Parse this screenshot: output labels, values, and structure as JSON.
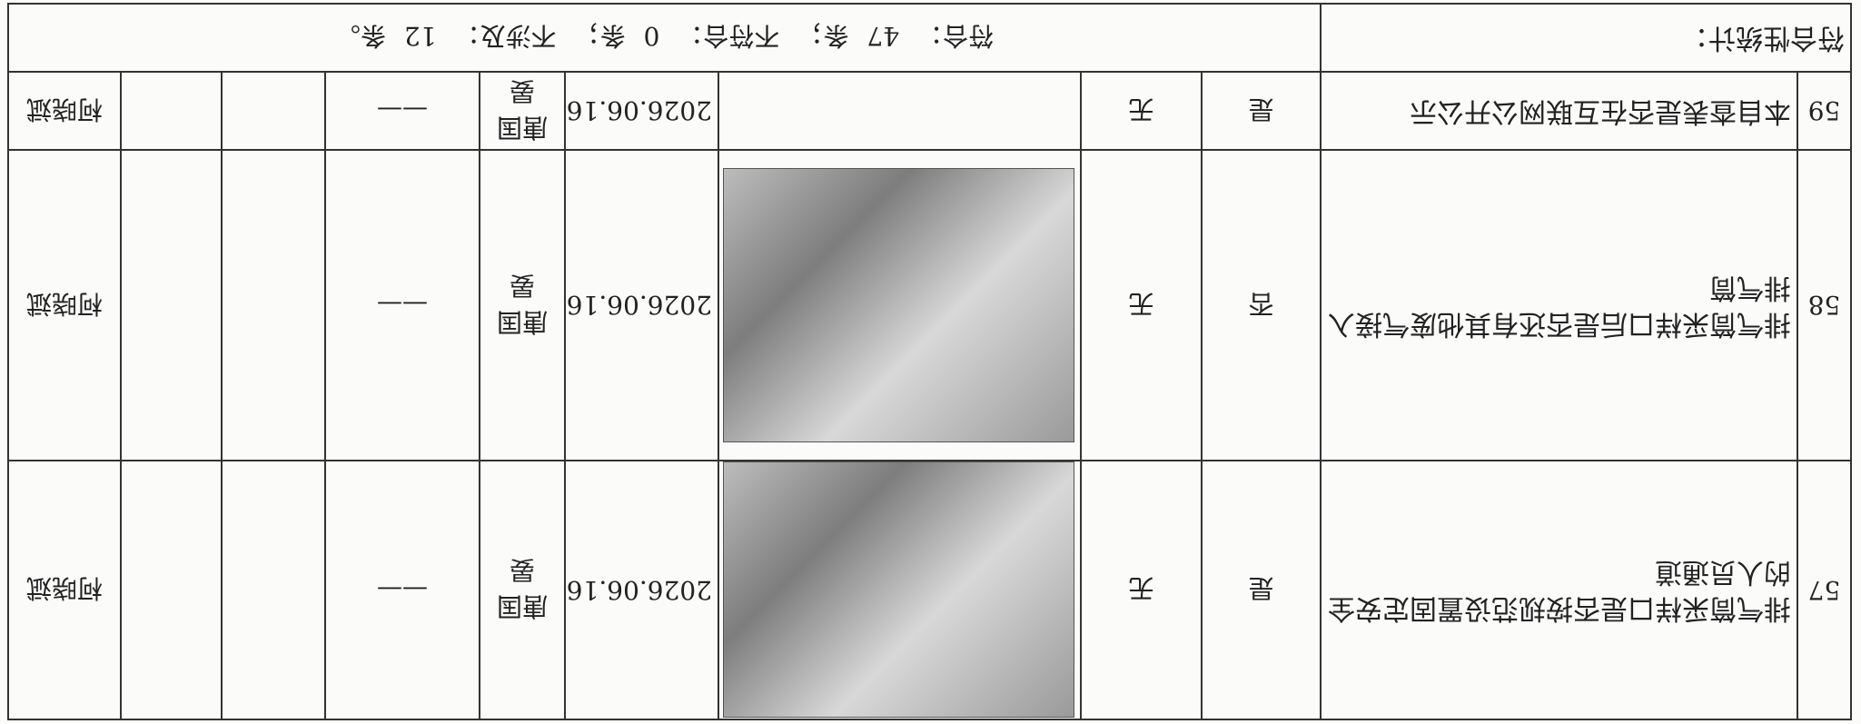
{
  "rows": [
    {
      "no": "57",
      "item": "排气筒采样口是否按规范设置固定安全的人员通道",
      "answer": "是",
      "issue": "无",
      "date": "2026.06.16",
      "inspector": "唐国晏",
      "measure": "——",
      "reviewer": "柯晓斌"
    },
    {
      "no": "58",
      "item": "排气筒采样口后是否还有其他废气接入排气筒",
      "answer": "否",
      "issue": "无",
      "date": "2026.06.16",
      "inspector": "唐国晏",
      "measure": "——",
      "reviewer": "柯晓斌"
    },
    {
      "no": "59",
      "item": "本自查表是否在互联网公开公示",
      "answer": "是",
      "issue": "无",
      "date": "2026.06.16",
      "inspector": "唐国晏",
      "measure": "——",
      "reviewer": "柯晓斌"
    }
  ],
  "summary": {
    "label": "符合性统计：",
    "items": [
      {
        "label": "符合：",
        "count": 47,
        "suffix": "条；"
      },
      {
        "label": "不符合：",
        "count": 0,
        "suffix": "条；"
      },
      {
        "label": "不涉及：",
        "count": 12,
        "suffix": "条。"
      }
    ]
  }
}
